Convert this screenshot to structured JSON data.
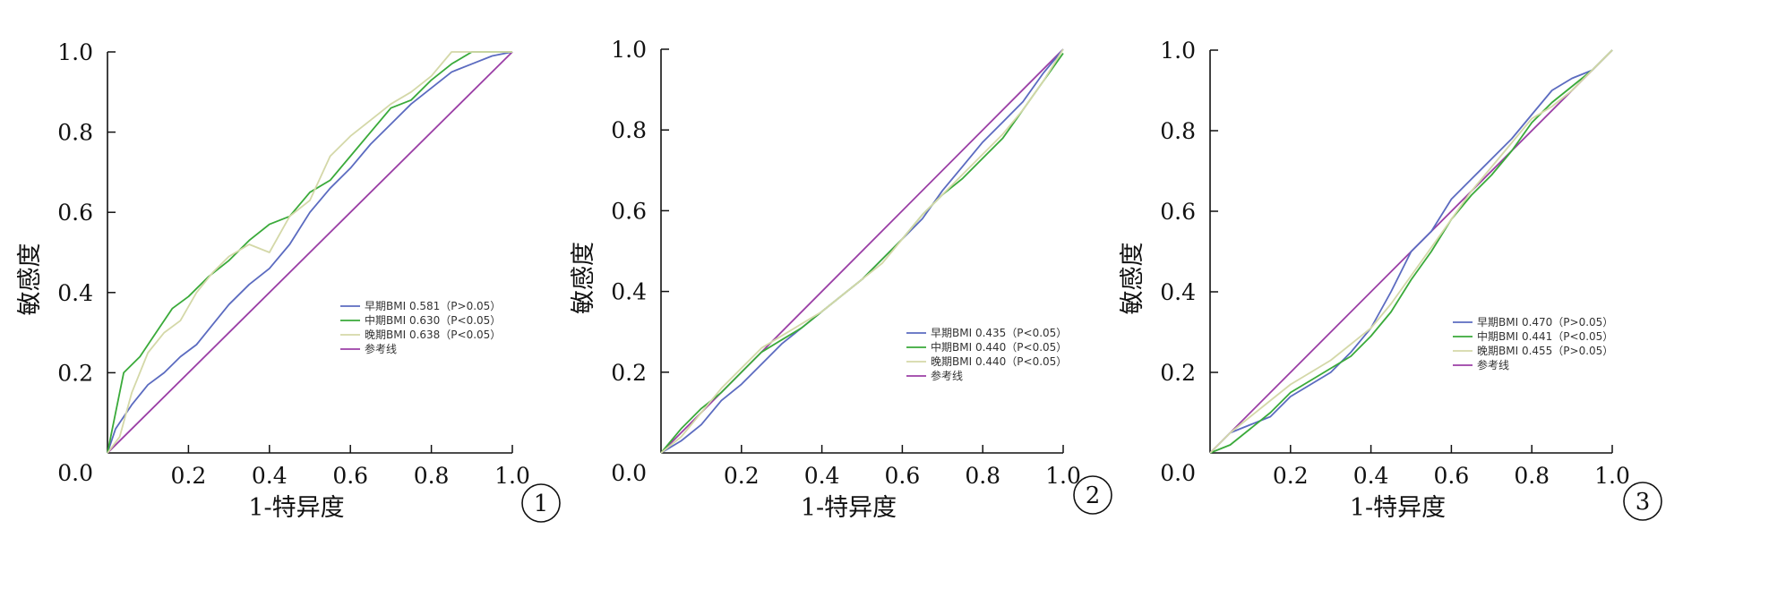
{
  "chart_data": [
    {
      "type": "line",
      "panel_label": "1",
      "xlabel": "1-特异度",
      "ylabel": "敏感度",
      "xlim": [
        0,
        1
      ],
      "ylim": [
        0,
        1
      ],
      "x_ticks": [
        "0.2",
        "0.4",
        "0.6",
        "0.8",
        "1.0"
      ],
      "y_ticks": [
        "0.2",
        "0.4",
        "0.6",
        "0.8",
        "1.0"
      ],
      "origin_label": "0.0",
      "grid": false,
      "legend_position": "center-right",
      "series": [
        {
          "name": "早期BMI 0.581（P>0.05）",
          "color": "#5b6bc0",
          "x": [
            0,
            0.02,
            0.06,
            0.1,
            0.14,
            0.18,
            0.22,
            0.26,
            0.3,
            0.35,
            0.4,
            0.45,
            0.5,
            0.55,
            0.6,
            0.65,
            0.7,
            0.75,
            0.8,
            0.85,
            0.9,
            0.95,
            1.0
          ],
          "y": [
            0,
            0.06,
            0.12,
            0.17,
            0.2,
            0.24,
            0.27,
            0.32,
            0.37,
            0.42,
            0.46,
            0.52,
            0.6,
            0.66,
            0.71,
            0.77,
            0.82,
            0.87,
            0.91,
            0.95,
            0.97,
            0.99,
            1.0
          ]
        },
        {
          "name": "中期BMI 0.630（P<0.05）",
          "color": "#3aaa3a",
          "x": [
            0,
            0.01,
            0.04,
            0.08,
            0.12,
            0.16,
            0.2,
            0.25,
            0.3,
            0.35,
            0.4,
            0.45,
            0.5,
            0.55,
            0.6,
            0.65,
            0.7,
            0.75,
            0.8,
            0.85,
            0.9,
            0.95,
            1.0
          ],
          "y": [
            0,
            0.05,
            0.2,
            0.24,
            0.3,
            0.36,
            0.39,
            0.44,
            0.48,
            0.53,
            0.57,
            0.59,
            0.65,
            0.68,
            0.74,
            0.8,
            0.86,
            0.88,
            0.93,
            0.97,
            1.0,
            1.0,
            1.0
          ]
        },
        {
          "name": "晚期BMI 0.638（P<0.05）",
          "color": "#d4d8a8",
          "x": [
            0,
            0.03,
            0.06,
            0.1,
            0.14,
            0.18,
            0.22,
            0.26,
            0.3,
            0.35,
            0.4,
            0.45,
            0.5,
            0.55,
            0.6,
            0.65,
            0.7,
            0.75,
            0.8,
            0.85,
            0.9,
            0.95,
            1.0
          ],
          "y": [
            0,
            0.04,
            0.15,
            0.25,
            0.3,
            0.33,
            0.4,
            0.45,
            0.49,
            0.52,
            0.5,
            0.59,
            0.63,
            0.74,
            0.79,
            0.83,
            0.87,
            0.9,
            0.94,
            1.0,
            1.0,
            1.0,
            1.0
          ]
        },
        {
          "name": "参考线",
          "color": "#9b3fa6",
          "x": [
            0,
            1
          ],
          "y": [
            0,
            1
          ]
        }
      ]
    },
    {
      "type": "line",
      "panel_label": "2",
      "xlabel": "1-特异度",
      "ylabel": "敏感度",
      "xlim": [
        0,
        1
      ],
      "ylim": [
        0,
        1
      ],
      "x_ticks": [
        "0.2",
        "0.4",
        "0.6",
        "0.8",
        "1.0"
      ],
      "y_ticks": [
        "0.2",
        "0.4",
        "0.6",
        "0.8",
        "1.0"
      ],
      "origin_label": "0.0",
      "grid": false,
      "legend_position": "bottom-right",
      "series": [
        {
          "name": "早期BMI 0.435（P<0.05）",
          "color": "#5b6bc0",
          "x": [
            0,
            0.05,
            0.1,
            0.15,
            0.2,
            0.25,
            0.3,
            0.35,
            0.4,
            0.45,
            0.5,
            0.55,
            0.6,
            0.65,
            0.7,
            0.75,
            0.8,
            0.85,
            0.9,
            0.95,
            1.0
          ],
          "y": [
            0,
            0.03,
            0.07,
            0.13,
            0.17,
            0.22,
            0.27,
            0.31,
            0.35,
            0.39,
            0.43,
            0.48,
            0.53,
            0.58,
            0.65,
            0.71,
            0.77,
            0.82,
            0.87,
            0.94,
            1.0
          ]
        },
        {
          "name": "中期BMI 0.440（P<0.05）",
          "color": "#3aaa3a",
          "x": [
            0,
            0.05,
            0.1,
            0.15,
            0.2,
            0.25,
            0.3,
            0.35,
            0.4,
            0.45,
            0.5,
            0.55,
            0.6,
            0.65,
            0.7,
            0.75,
            0.8,
            0.85,
            0.9,
            0.95,
            1.0
          ],
          "y": [
            0,
            0.06,
            0.11,
            0.15,
            0.2,
            0.25,
            0.28,
            0.31,
            0.35,
            0.39,
            0.43,
            0.48,
            0.53,
            0.59,
            0.64,
            0.68,
            0.73,
            0.78,
            0.85,
            0.92,
            0.99
          ]
        },
        {
          "name": "晚期BMI 0.440（P<0.05）",
          "color": "#d4d8a8",
          "x": [
            0,
            0.05,
            0.1,
            0.15,
            0.2,
            0.25,
            0.3,
            0.35,
            0.4,
            0.45,
            0.5,
            0.55,
            0.6,
            0.65,
            0.7,
            0.75,
            0.8,
            0.85,
            0.9,
            0.95,
            1.0
          ],
          "y": [
            0,
            0.04,
            0.1,
            0.16,
            0.21,
            0.26,
            0.29,
            0.32,
            0.35,
            0.39,
            0.43,
            0.47,
            0.53,
            0.59,
            0.64,
            0.69,
            0.74,
            0.79,
            0.85,
            0.92,
            1.0
          ]
        },
        {
          "name": "参考线",
          "color": "#9b3fa6",
          "x": [
            0,
            1
          ],
          "y": [
            0,
            1
          ]
        }
      ]
    },
    {
      "type": "line",
      "panel_label": "3",
      "xlabel": "1-特异度",
      "ylabel": "敏感度",
      "xlim": [
        0,
        1
      ],
      "ylim": [
        0,
        1
      ],
      "x_ticks": [
        "0.2",
        "0.4",
        "0.6",
        "0.8",
        "1.0"
      ],
      "y_ticks": [
        "0.2",
        "0.4",
        "0.6",
        "0.8",
        "1.0"
      ],
      "origin_label": "0.0",
      "grid": false,
      "legend_position": "center-right",
      "series": [
        {
          "name": "早期BMI 0.470（P>0.05）",
          "color": "#5b6bc0",
          "x": [
            0,
            0.05,
            0.1,
            0.15,
            0.2,
            0.25,
            0.3,
            0.35,
            0.4,
            0.45,
            0.5,
            0.55,
            0.6,
            0.65,
            0.7,
            0.75,
            0.8,
            0.85,
            0.9,
            0.95,
            1.0
          ],
          "y": [
            0,
            0.05,
            0.07,
            0.09,
            0.14,
            0.17,
            0.2,
            0.25,
            0.31,
            0.4,
            0.5,
            0.55,
            0.63,
            0.68,
            0.73,
            0.78,
            0.84,
            0.9,
            0.93,
            0.95,
            1.0
          ]
        },
        {
          "name": "中期BMI 0.441（P<0.05）",
          "color": "#3aaa3a",
          "x": [
            0,
            0.05,
            0.1,
            0.15,
            0.2,
            0.25,
            0.3,
            0.35,
            0.4,
            0.45,
            0.5,
            0.55,
            0.6,
            0.65,
            0.7,
            0.75,
            0.8,
            0.85,
            0.9,
            0.95,
            1.0
          ],
          "y": [
            0,
            0.02,
            0.06,
            0.1,
            0.15,
            0.18,
            0.21,
            0.24,
            0.29,
            0.35,
            0.43,
            0.5,
            0.58,
            0.64,
            0.69,
            0.75,
            0.82,
            0.87,
            0.91,
            0.95,
            1.0
          ]
        },
        {
          "name": "晚期BMI 0.455（P>0.05）",
          "color": "#d4d8a8",
          "x": [
            0,
            0.05,
            0.1,
            0.15,
            0.2,
            0.25,
            0.3,
            0.35,
            0.4,
            0.45,
            0.5,
            0.55,
            0.6,
            0.65,
            0.7,
            0.75,
            0.8,
            0.85,
            0.9,
            0.95,
            1.0
          ],
          "y": [
            0,
            0.05,
            0.09,
            0.13,
            0.17,
            0.2,
            0.23,
            0.27,
            0.31,
            0.37,
            0.44,
            0.51,
            0.58,
            0.65,
            0.71,
            0.77,
            0.83,
            0.86,
            0.9,
            0.95,
            1.0
          ]
        },
        {
          "name": "参考线",
          "color": "#9b3fa6",
          "x": [
            0,
            1
          ],
          "y": [
            0,
            1
          ]
        }
      ]
    }
  ]
}
